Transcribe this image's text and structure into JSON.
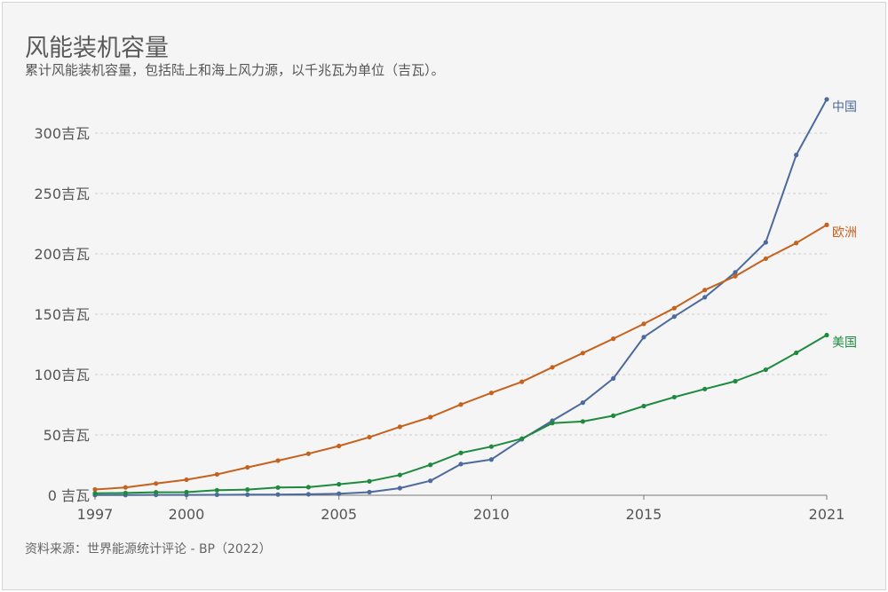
{
  "title": "风能装机容量",
  "subtitle": "累计风能装机容量，包括陆上和海上风力源，以千兆瓦为单位（吉瓦）。",
  "source": "资料来源：世界能源统计评论 - BP（2022）",
  "colors": {
    "china": "#4c6a9c",
    "europe": "#c4621e",
    "usa": "#1e8a3e",
    "grid": "#cfcfcf",
    "axis": "#555555"
  },
  "chart_data": {
    "type": "line",
    "xlim": [
      1997,
      2021
    ],
    "ylim": [
      0,
      330
    ],
    "x_ticks": [
      {
        "value": 1997,
        "label": "1997"
      },
      {
        "value": 2000,
        "label": "2000"
      },
      {
        "value": 2005,
        "label": "2005"
      },
      {
        "value": 2010,
        "label": "2010"
      },
      {
        "value": 2015,
        "label": "2015"
      },
      {
        "value": 2021,
        "label": "2021"
      }
    ],
    "y_ticks": [
      {
        "value": 0,
        "label": "0 吉瓦"
      },
      {
        "value": 50,
        "label": "50吉瓦"
      },
      {
        "value": 100,
        "label": "100吉瓦"
      },
      {
        "value": 150,
        "label": "150吉瓦"
      },
      {
        "value": 200,
        "label": "200吉瓦"
      },
      {
        "value": 250,
        "label": "250吉瓦"
      },
      {
        "value": 300,
        "label": "300吉瓦"
      }
    ],
    "x": [
      1997,
      1998,
      1999,
      2000,
      2001,
      2002,
      2003,
      2004,
      2005,
      2006,
      2007,
      2008,
      2009,
      2010,
      2011,
      2012,
      2013,
      2014,
      2015,
      2016,
      2017,
      2018,
      2019,
      2020,
      2021
    ],
    "series": [
      {
        "key": "china",
        "name": "中国",
        "values": [
          0.2,
          0.2,
          0.3,
          0.3,
          0.4,
          0.5,
          0.6,
          0.8,
          1.3,
          2.6,
          5.9,
          12.0,
          25.8,
          29.6,
          46.4,
          61.8,
          76.7,
          96.8,
          131.0,
          148.0,
          164.0,
          184.7,
          209.5,
          281.9,
          328.0
        ]
      },
      {
        "key": "europe",
        "name": "欧洲",
        "values": [
          4.8,
          6.5,
          9.7,
          12.9,
          17.3,
          23.1,
          28.7,
          34.4,
          40.8,
          48.1,
          56.7,
          64.7,
          75.2,
          84.8,
          94.0,
          106.0,
          117.8,
          129.7,
          142.0,
          155.0,
          170.0,
          181.5,
          196.0,
          209.0,
          224.0
        ]
      },
      {
        "key": "usa",
        "name": "美国",
        "values": [
          1.6,
          1.9,
          2.5,
          2.6,
          4.2,
          4.7,
          6.4,
          6.7,
          9.1,
          11.6,
          16.8,
          25.2,
          35.1,
          40.3,
          46.9,
          59.8,
          61.1,
          65.9,
          73.9,
          81.3,
          88.0,
          94.5,
          104.0,
          118.0,
          132.7
        ]
      }
    ]
  }
}
